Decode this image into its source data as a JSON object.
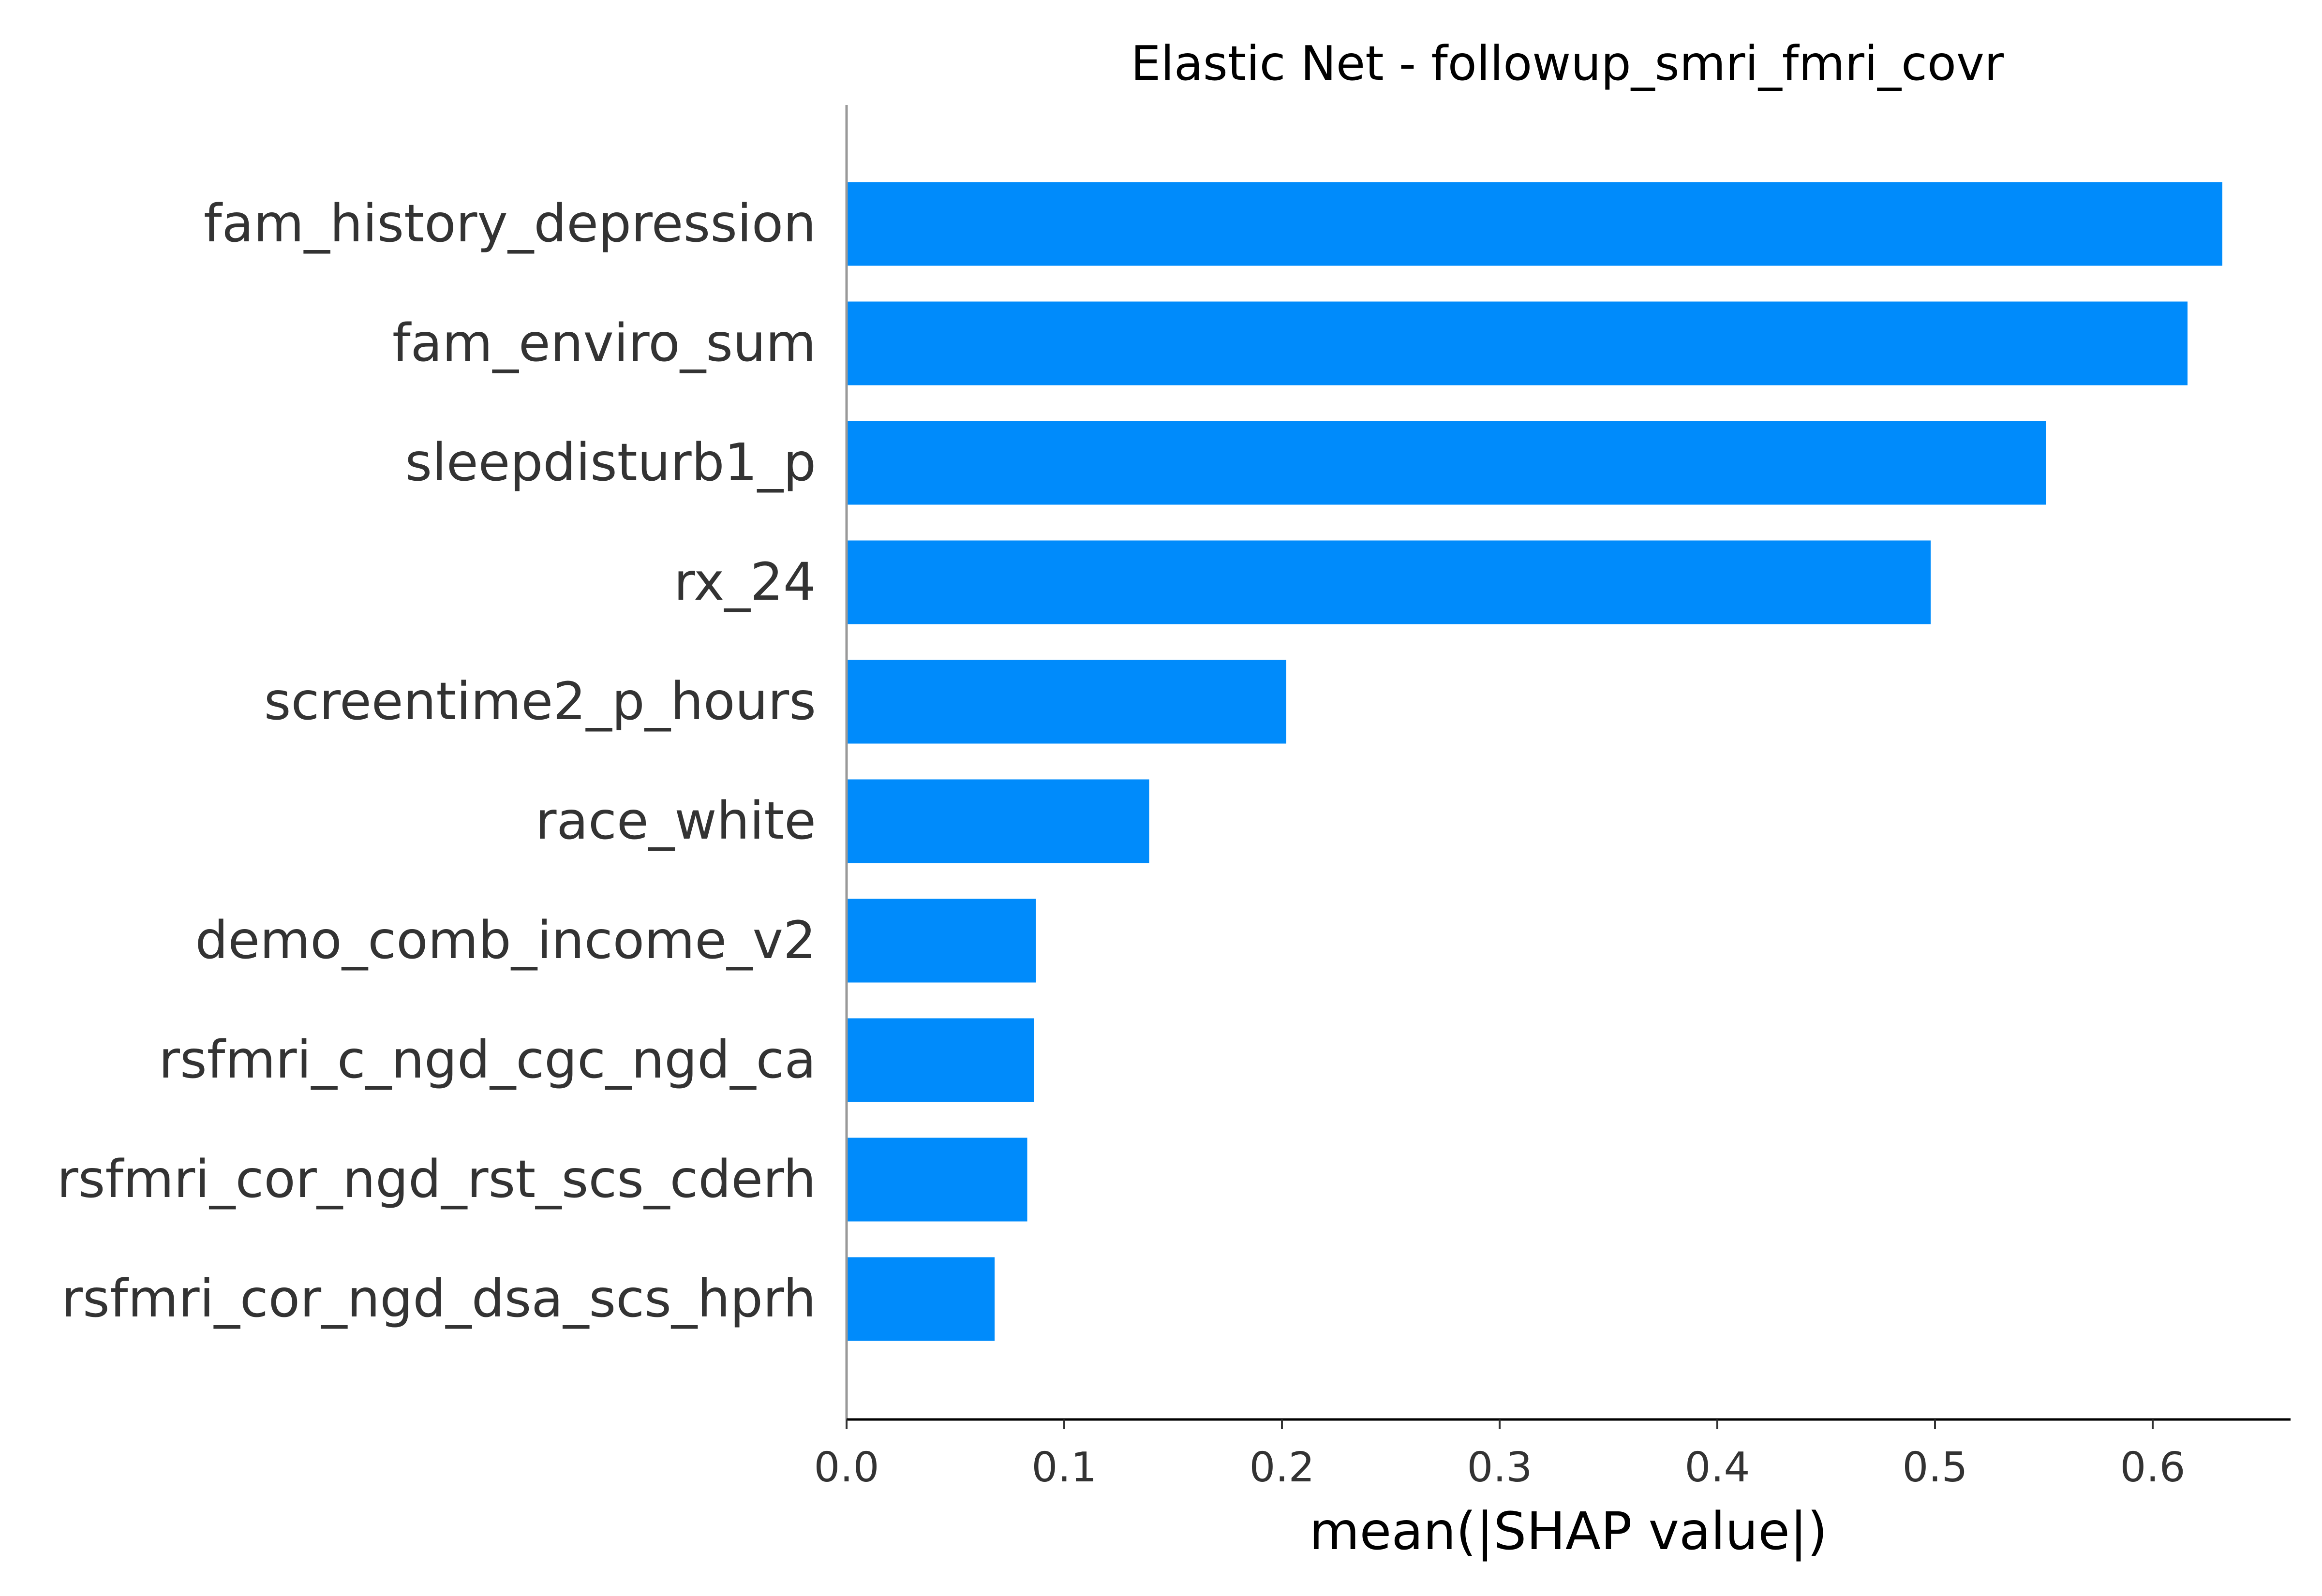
{
  "chart_data": {
    "type": "bar",
    "orientation": "horizontal",
    "title": "Elastic Net - followup_smri_fmri_covr",
    "xlabel": "mean(|SHAP value|)",
    "ylabel": "",
    "categories": [
      "fam_history_depression",
      "fam_enviro_sum",
      "sleepdisturb1_p",
      "rx_24",
      "screentime2_p_hours",
      "race_white",
      "demo_comb_income_v2",
      "rsfmri_c_ngd_cgc_ngd_ca",
      "rsfmri_cor_ngd_rst_scs_cderh",
      "rsfmri_cor_ngd_dsa_scs_hprh"
    ],
    "values": [
      0.632,
      0.616,
      0.551,
      0.498,
      0.202,
      0.139,
      0.087,
      0.086,
      0.083,
      0.068
    ],
    "xticks": [
      "0.0",
      "0.1",
      "0.2",
      "0.3",
      "0.4",
      "0.5",
      "0.6"
    ],
    "xlim": [
      0,
      0.663
    ],
    "grid": false,
    "bar_color": "#008bfb"
  }
}
